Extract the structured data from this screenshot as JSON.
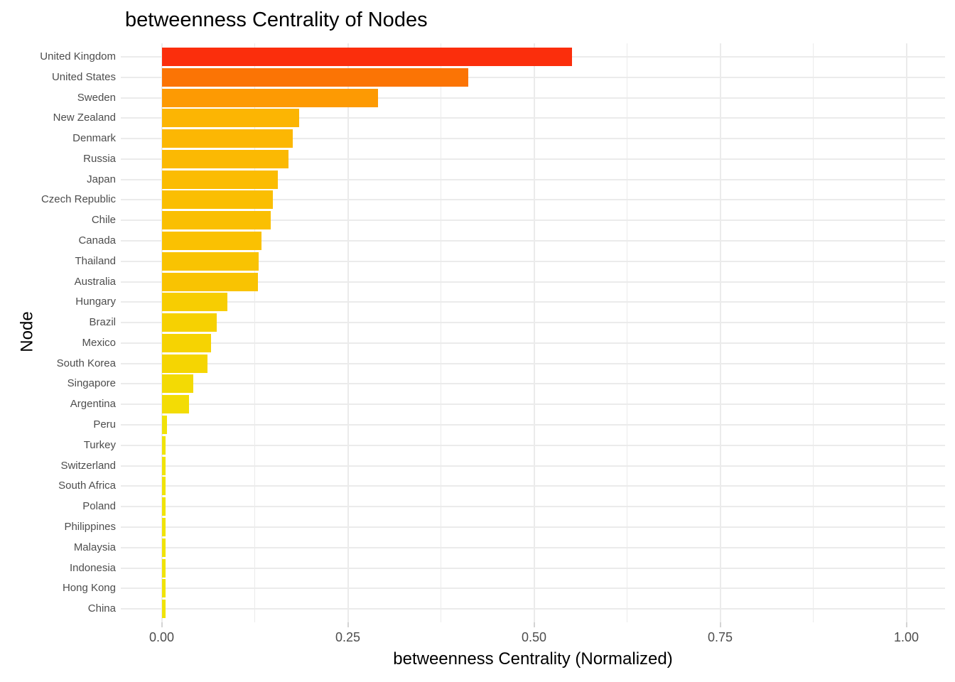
{
  "chart_data": {
    "type": "bar",
    "orientation": "horizontal",
    "title": "betweenness Centrality of Nodes",
    "xlabel": "betweenness Centrality (Normalized)",
    "ylabel": "Node",
    "xlim": [
      0,
      1.0
    ],
    "legend": "none",
    "grid": true,
    "x_major_ticks": [
      {
        "value": 0.0,
        "label": "0.00"
      },
      {
        "value": 0.25,
        "label": "0.25"
      },
      {
        "value": 0.5,
        "label": "0.50"
      },
      {
        "value": 0.75,
        "label": "0.75"
      },
      {
        "value": 1.0,
        "label": "1.00"
      }
    ],
    "x_minor_ticks": [
      0.125,
      0.375,
      0.625,
      0.875
    ],
    "categories": [
      "United Kingdom",
      "United States",
      "Sweden",
      "New Zealand",
      "Denmark",
      "Russia",
      "Japan",
      "Czech Republic",
      "Chile",
      "Canada",
      "Thailand",
      "Australia",
      "Hungary",
      "Brazil",
      "Mexico",
      "South Korea",
      "Singapore",
      "Argentina",
      "Peru",
      "Turkey",
      "Switzerland",
      "South Africa",
      "Poland",
      "Philippines",
      "Malaysia",
      "Indonesia",
      "Hong Kong",
      "China"
    ],
    "values": [
      0.551,
      0.411,
      0.29,
      0.184,
      0.176,
      0.17,
      0.156,
      0.149,
      0.146,
      0.134,
      0.13,
      0.129,
      0.088,
      0.073,
      0.066,
      0.061,
      0.042,
      0.036,
      0.007,
      0.005,
      0.005,
      0.005,
      0.005,
      0.005,
      0.005,
      0.005,
      0.005,
      0.005
    ],
    "bar_colors": [
      "#FB2E0C",
      "#FB7405",
      "#FD9A03",
      "#FCB503",
      "#FCB703",
      "#FBB903",
      "#FBBC02",
      "#FABE02",
      "#FABF02",
      "#FAC102",
      "#F9C302",
      "#F9C302",
      "#F7CD02",
      "#F6D102",
      "#F6D302",
      "#F5D502",
      "#F3DA04",
      "#F3DC05",
      "#F1E207",
      "#F0E307",
      "#F0E307",
      "#F0E307",
      "#F0E307",
      "#F0E307",
      "#F0E307",
      "#F0E307",
      "#F0E307",
      "#F0E307"
    ],
    "theme": {
      "background": "#FFFFFF",
      "grid_color": "#EBEBEB",
      "axis_text_color": "#4D4D4D",
      "tick_mark_color": "#D4D4D4",
      "title_color": "#000000",
      "gradient_low": "#FFFF00",
      "gradient_high": "#FF0000"
    }
  }
}
